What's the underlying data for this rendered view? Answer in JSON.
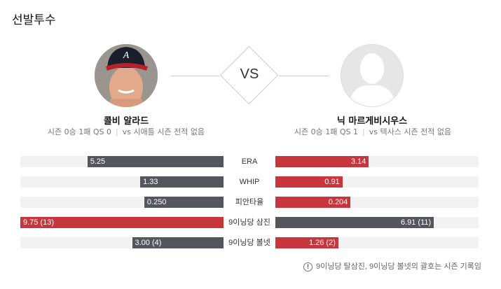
{
  "section_title": "선발투수",
  "vs_label": "VS",
  "colors": {
    "dark": "#53565d",
    "red": "#c8363d",
    "track": "#f2f2f2"
  },
  "left_pitcher": {
    "name": "콜비 알라드",
    "season_record": "시즌 0승 1패 QS 0",
    "vs_record": "vs 시애틀 시즌 전적 없음",
    "photo": "player-photo-braves-cap"
  },
  "right_pitcher": {
    "name": "닉 마르게비시우스",
    "season_record": "시즌 0승 1패 QS 1",
    "vs_record": "vs 텍사스 시즌 전적 없음",
    "photo": "default-silhouette"
  },
  "stats": [
    {
      "label": "ERA",
      "left": "5.25",
      "right": "3.14",
      "left_fill": 0.67,
      "right_fill": 0.46,
      "left_color": "dark",
      "right_color": "red"
    },
    {
      "label": "WHIP",
      "left": "1.33",
      "right": "0.91",
      "left_fill": 0.41,
      "right_fill": 0.33,
      "left_color": "dark",
      "right_color": "red"
    },
    {
      "label": "피안타율",
      "left": "0.250",
      "right": "0.204",
      "left_fill": 0.39,
      "right_fill": 0.37,
      "left_color": "dark",
      "right_color": "red"
    },
    {
      "label": "9이닝당 삼진",
      "left": "9.75 (13)",
      "right": "6.91 (11)",
      "left_fill": 1.0,
      "right_fill": 0.78,
      "left_color": "red",
      "right_color": "dark"
    },
    {
      "label": "9이닝당 볼넷",
      "left": "3.00 (4)",
      "right": "1.26 (2)",
      "left_fill": 0.45,
      "right_fill": 0.31,
      "left_color": "dark",
      "right_color": "red"
    }
  ],
  "footnote": "9이닝당 탈삼진, 9이닝당 볼넷의 괄호는 시즌 기록임",
  "footnote_icon": "!"
}
